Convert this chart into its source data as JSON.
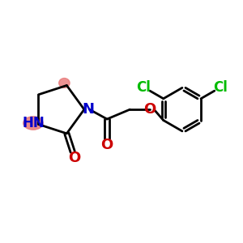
{
  "bg_color": "#ffffff",
  "bond_color": "#000000",
  "bond_width": 2.0,
  "n_color": "#0000cc",
  "o_color": "#cc0000",
  "cl_color": "#00bb00",
  "nh_highlight": "#e87878",
  "figsize": [
    3.0,
    3.0
  ],
  "dpi": 100,
  "xlim": [
    0,
    10
  ],
  "ylim": [
    0,
    10
  ]
}
